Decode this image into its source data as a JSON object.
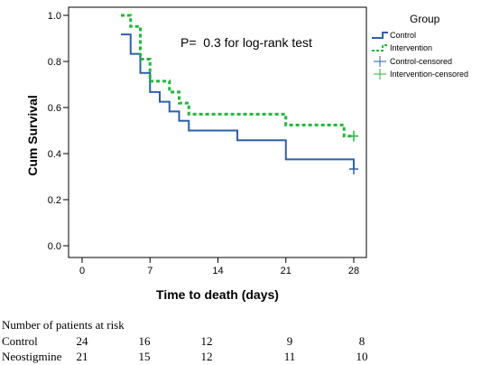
{
  "chart_data": {
    "type": "line",
    "subtype": "kaplan-meier",
    "ylabel": "Cum Survival",
    "xlabel": "Time to death (days)",
    "annotation": "P=  0.3 for log-rank test",
    "xlim": [
      0,
      28
    ],
    "ylim": [
      0.0,
      1.0
    ],
    "x_ticks": [
      0,
      7,
      14,
      21,
      28
    ],
    "x_tick_labels": [
      "0",
      "7",
      "14",
      "21",
      "28"
    ],
    "y_ticks": [
      0.0,
      0.2,
      0.4,
      0.6,
      0.8,
      1.0
    ],
    "y_tick_labels": [
      "0.0",
      "0.2",
      "0.4",
      "0.6",
      "0.8",
      "1.0"
    ],
    "legend": {
      "title": "Group",
      "placement": "right",
      "entries": [
        "Control",
        "Intervention",
        "Control-censored",
        "Intervention-censored"
      ]
    },
    "series": [
      {
        "name": "Control",
        "color": "#2e5fad",
        "style": "solid",
        "start_x": 4,
        "steps": [
          {
            "x": 4,
            "y": 0.917
          },
          {
            "x": 5,
            "y": 0.833
          },
          {
            "x": 6,
            "y": 0.75
          },
          {
            "x": 7,
            "y": 0.667
          },
          {
            "x": 8,
            "y": 0.625
          },
          {
            "x": 9,
            "y": 0.583
          },
          {
            "x": 10,
            "y": 0.542
          },
          {
            "x": 11,
            "y": 0.5
          },
          {
            "x": 16,
            "y": 0.458
          },
          {
            "x": 21,
            "y": 0.375
          },
          {
            "x": 28,
            "y": 0.333
          }
        ],
        "censored": [
          {
            "x": 28,
            "y": 0.333
          }
        ]
      },
      {
        "name": "Intervention",
        "color": "#1fb83a",
        "style": "dashed",
        "start_x": 4,
        "steps": [
          {
            "x": 4,
            "y": 1.0
          },
          {
            "x": 5,
            "y": 0.952
          },
          {
            "x": 6,
            "y": 0.81
          },
          {
            "x": 7,
            "y": 0.714
          },
          {
            "x": 9,
            "y": 0.667
          },
          {
            "x": 10,
            "y": 0.619
          },
          {
            "x": 11,
            "y": 0.571
          },
          {
            "x": 21,
            "y": 0.524
          },
          {
            "x": 27,
            "y": 0.476
          }
        ],
        "censored": [
          {
            "x": 28,
            "y": 0.476
          }
        ]
      }
    ]
  },
  "risk_table": {
    "title": "Number of patients at risk",
    "rows": [
      {
        "group": "Control",
        "values": [
          "24",
          "16",
          "12",
          "9",
          "8"
        ]
      },
      {
        "group": "Neostigmine",
        "values": [
          "21",
          "15",
          "12",
          "11",
          "10"
        ]
      }
    ]
  }
}
